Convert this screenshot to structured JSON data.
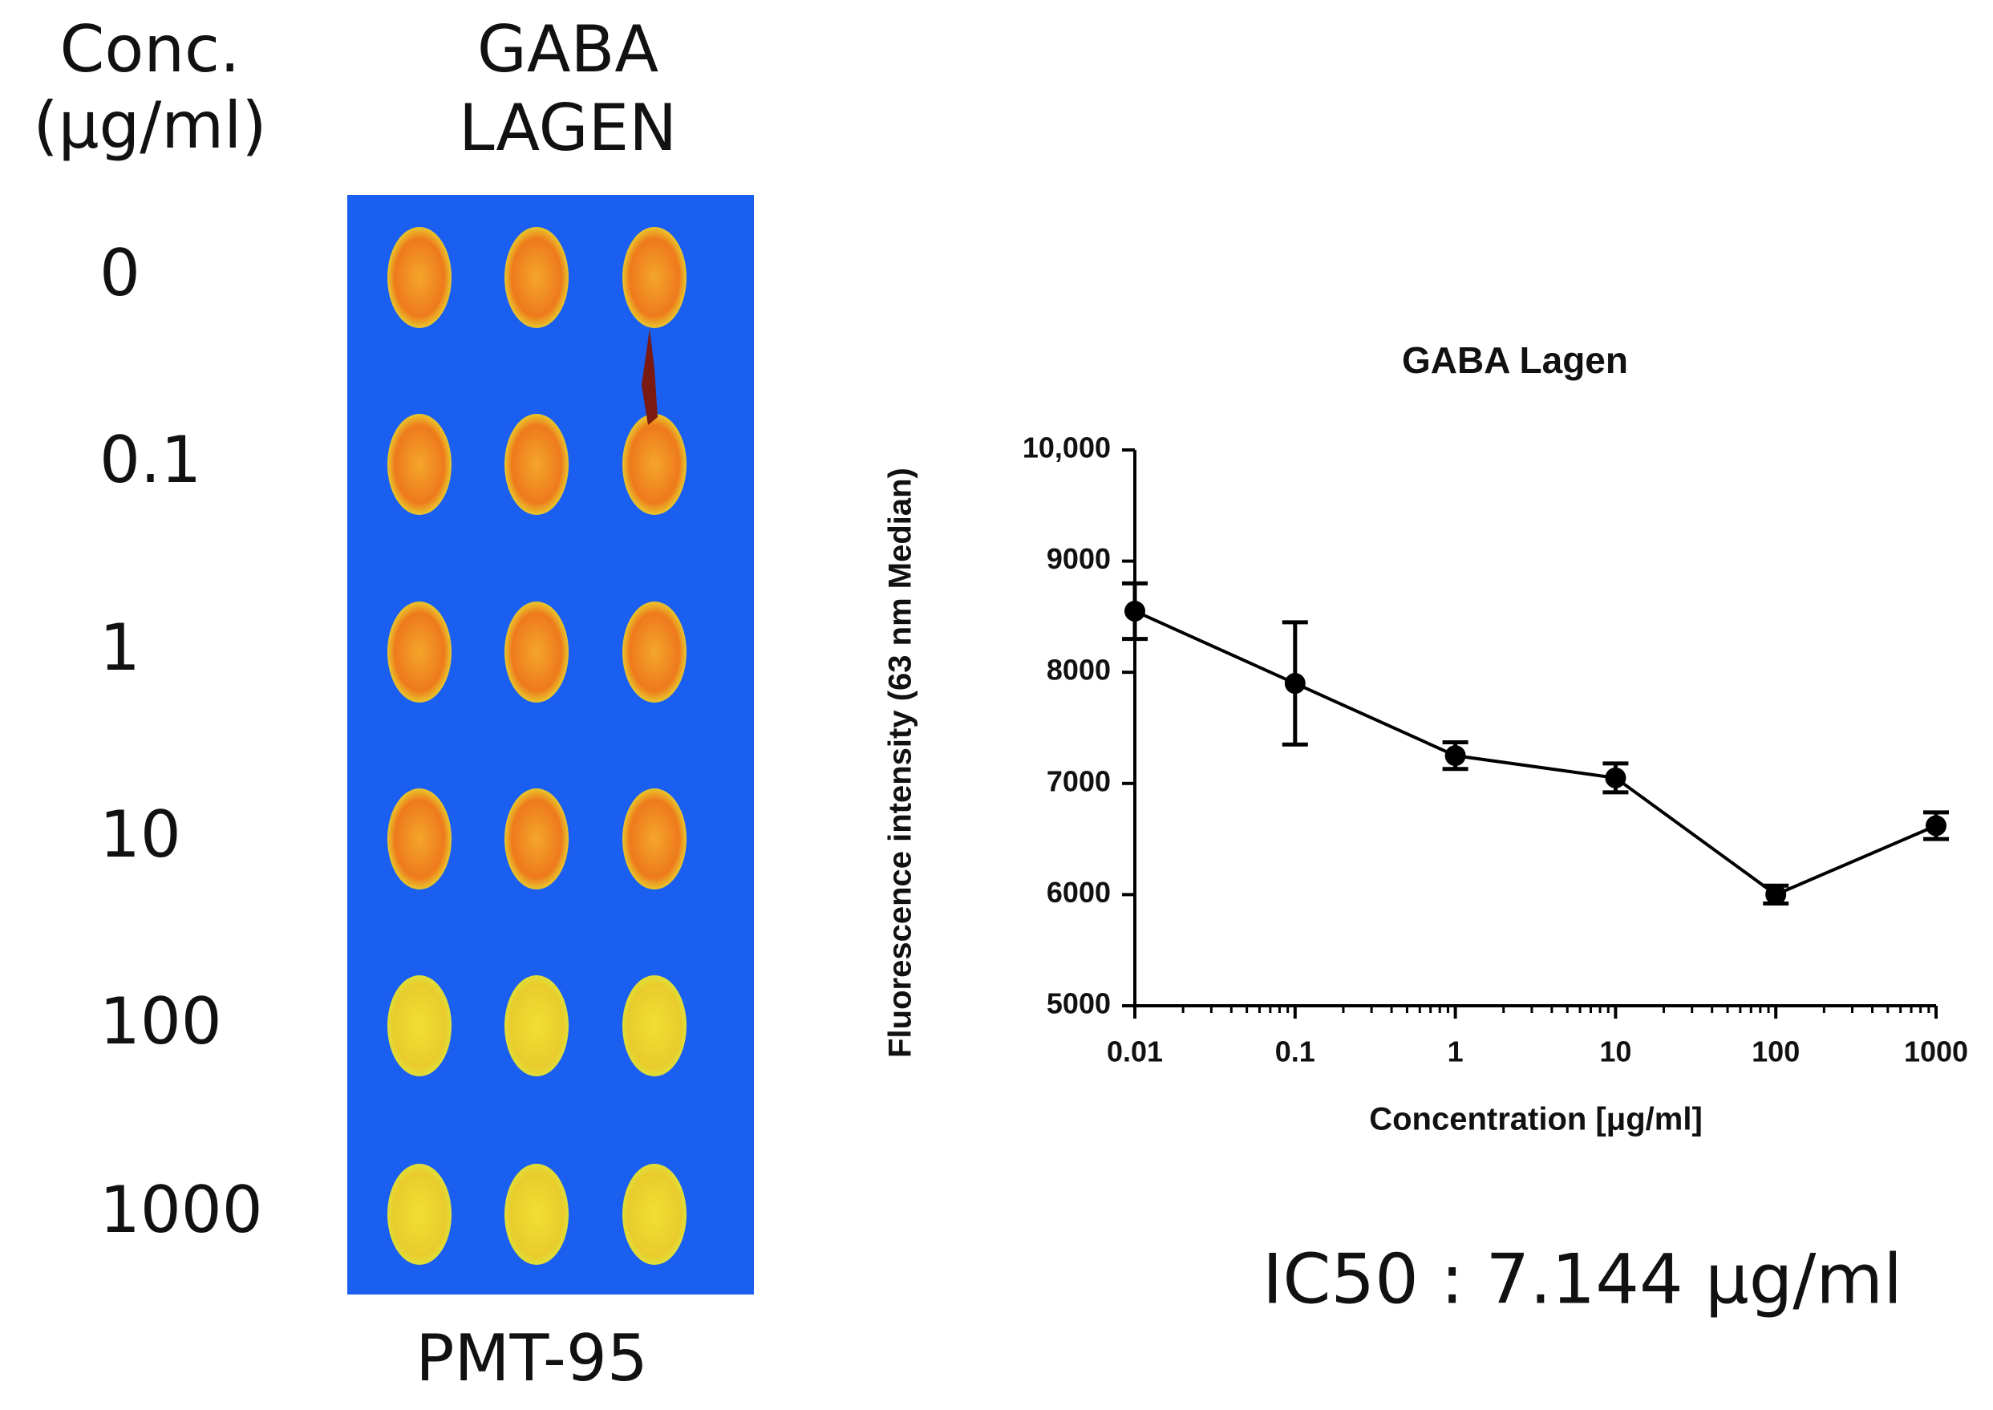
{
  "panel": {
    "conc_label": [
      "Conc.",
      "(μg/ml)"
    ],
    "sample_label": [
      "GABA",
      "LAGEN"
    ],
    "rows": [
      "0",
      "0.1",
      "1",
      "10",
      "100",
      "1000"
    ],
    "footer": "PMT-95",
    "ic50": "IC50 : 7.144 μg/ml"
  },
  "chart_data": {
    "type": "line",
    "title": "GABA Lagen",
    "x_label": "Concentration [μg/ml]",
    "y_label": "Fluorescence intensity (63 nm Median)",
    "x": [
      0.01,
      0.1,
      1,
      10,
      100,
      1000
    ],
    "values": [
      8550,
      7900,
      7250,
      7050,
      6000,
      6620
    ],
    "errors": [
      250,
      550,
      120,
      130,
      80,
      120
    ],
    "color": "#000000",
    "x_log": true,
    "xlim": [
      0.01,
      1000
    ],
    "xticks": [
      0.01,
      0.1,
      1,
      10,
      100,
      1000
    ],
    "ylim": [
      5000,
      10000
    ],
    "yticks": [
      5000,
      6000,
      7000,
      8000,
      9000,
      {
        "value": 10000,
        "label": "10,000"
      }
    ],
    "grid": false
  }
}
